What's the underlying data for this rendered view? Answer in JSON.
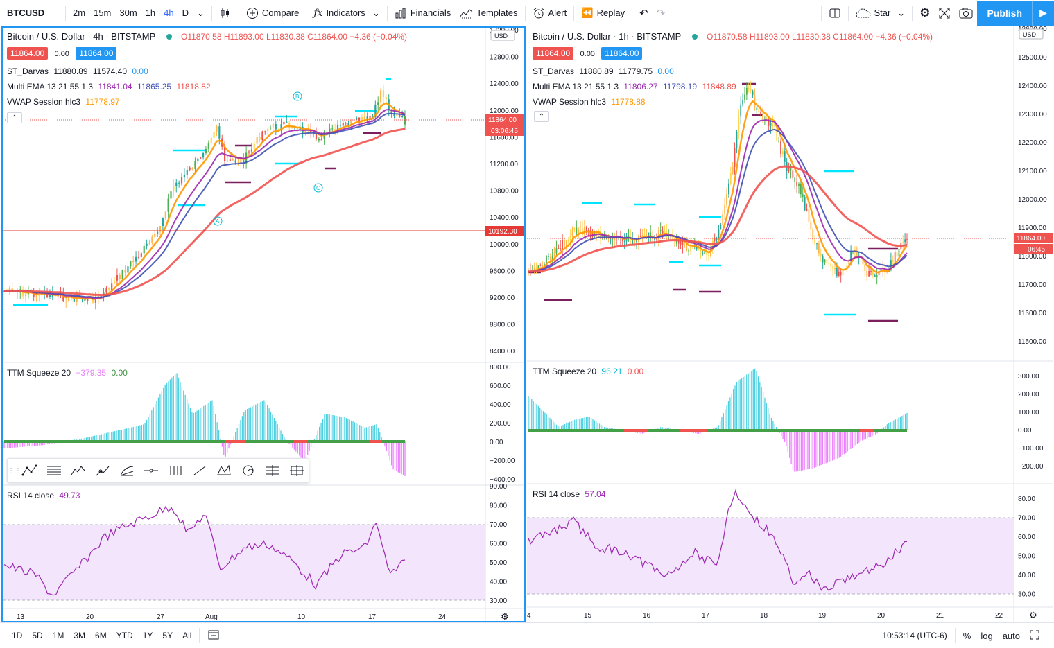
{
  "toolbar": {
    "symbol": "BTCUSD",
    "intervals": [
      "2m",
      "15m",
      "30m",
      "1h",
      "4h",
      "D"
    ],
    "active_interval": "4h",
    "compare": "Compare",
    "indicators": "Indicators",
    "financials": "Financials",
    "templates": "Templates",
    "alert": "Alert",
    "replay": "Replay",
    "star": "Star",
    "publish": "Publish"
  },
  "left": {
    "title": "Bitcoin / U.S. Dollar · 4h · BITSTAMP",
    "ohlc": "O11870.58 H11893.00 L11830.38 C11864.00 −4.36 (−0.04%)",
    "bid": "11864.00",
    "spread": "0.00",
    "ask": "11864.00",
    "darvas": {
      "name": "ST_Darvas",
      "v1": "11880.89",
      "v2": "11574.40",
      "v3": "0.00"
    },
    "ema": {
      "name": "Multi EMA 13 21 55 1 3",
      "v1": "11841.04",
      "v2": "11865.25",
      "v3": "11818.82"
    },
    "vwap": {
      "name": "VWAP Session hlc3",
      "v1": "11778.97"
    },
    "squeeze": {
      "name": "TTM Squeeze 20",
      "v1": "−379.35",
      "v2": "0.00"
    },
    "rsi": {
      "name": "RSI 14 close",
      "v1": "49.73"
    },
    "currency": "USD",
    "price_ticks": [
      "13200.00",
      "12800.00",
      "12400.00",
      "12000.00",
      "11600.00",
      "11200.00",
      "10800.00",
      "10400.00",
      "10000.00",
      "9600.00",
      "9200.00",
      "8800.00",
      "8400.00"
    ],
    "last_price": "11864.00",
    "countdown": "03:06:45",
    "hline_price": "10192.30",
    "squeeze_ticks": [
      "800.00",
      "600.00",
      "400.00",
      "200.00",
      "0.00",
      "−200.00",
      "−400.00"
    ],
    "rsi_ticks": [
      "90.00",
      "80.00",
      "70.00",
      "60.00",
      "50.00",
      "40.00",
      "30.00"
    ],
    "time_ticks": [
      "13",
      "20",
      "27",
      "Aug",
      "10",
      "17",
      "24"
    ],
    "labels": {
      "a": "A",
      "b": "B",
      "c": "C"
    }
  },
  "right": {
    "title": "Bitcoin / U.S. Dollar · 1h · BITSTAMP",
    "ohlc": "O11870.58 H11893.00 L11830.38 C11864.00 −4.36 (−0.04%)",
    "bid": "11864.00",
    "spread": "0.00",
    "ask": "11864.00",
    "darvas": {
      "name": "ST_Darvas",
      "v1": "11880.89",
      "v2": "11779.75",
      "v3": "0.00"
    },
    "ema": {
      "name": "Multi EMA 13 21 55 1 3",
      "v1": "11806.27",
      "v2": "11798.19",
      "v3": "11848.89"
    },
    "vwap": {
      "name": "VWAP Session hlc3",
      "v1": "11778.88"
    },
    "squeeze": {
      "name": "TTM Squeeze 20",
      "v1": "96.21",
      "v2": "0.00"
    },
    "rsi": {
      "name": "RSI 14 close",
      "v1": "57.04"
    },
    "currency": "USD",
    "price_ticks": [
      "12600.00",
      "12500.00",
      "12400.00",
      "12300.00",
      "12200.00",
      "12100.00",
      "12000.00",
      "11900.00",
      "11800.00",
      "11700.00",
      "11600.00",
      "11500.00"
    ],
    "last_price": "11864.00",
    "countdown": "06:45",
    "squeeze_ticks": [
      "300.00",
      "200.00",
      "100.00",
      "0.00",
      "−100.00",
      "−200.00"
    ],
    "rsi_ticks": [
      "80.00",
      "70.00",
      "60.00",
      "50.00",
      "40.00",
      "30.00"
    ],
    "time_ticks": [
      "4",
      "15",
      "16",
      "17",
      "18",
      "19",
      "20",
      "21",
      "22"
    ]
  },
  "bottom": {
    "ranges": [
      "1D",
      "5D",
      "1M",
      "3M",
      "6M",
      "YTD",
      "1Y",
      "5Y",
      "All"
    ],
    "clock": "10:53:14 (UTC-6)",
    "percent": "%",
    "log": "log",
    "auto": "auto"
  },
  "colors": {
    "accent": "#2196f3",
    "up": "#26a69a",
    "down": "#ef5350",
    "ema_fast": "#ff9800",
    "ema_mid": "#9c27b0",
    "ema_slow": "#3f51b5",
    "ema_trend": "#ef5350",
    "darvas_top": "#00e5ff",
    "darvas_bottom": "#7b1f5e",
    "rsi": "#9c27b0",
    "rsi_band": "#f3e5fb"
  },
  "icons": [
    "candles-icon",
    "compare-plus-icon",
    "fx-icon",
    "financials-icon",
    "templates-icon",
    "alarm-icon",
    "replay-icon",
    "undo-icon",
    "redo-icon",
    "layout-icon",
    "cloud-icon",
    "gear-icon",
    "fullscreen-icon",
    "camera-icon",
    "play-icon"
  ]
}
